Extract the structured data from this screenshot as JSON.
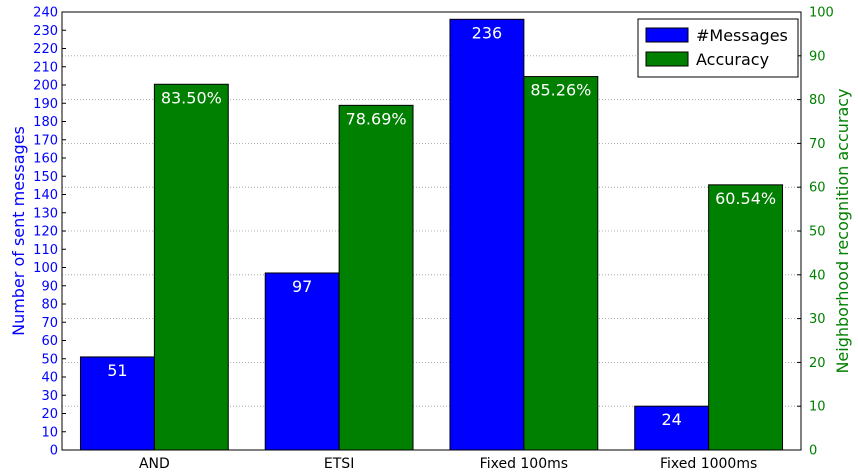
{
  "chart_data": {
    "type": "bar",
    "categories": [
      "AND",
      "ETSI",
      "Fixed 100ms",
      "Fixed 1000ms"
    ],
    "series": [
      {
        "name": "#Messages",
        "values": [
          51,
          97,
          236,
          24
        ],
        "labels": [
          "51",
          "97",
          "236",
          "24"
        ],
        "axis": "left",
        "color": "#0000ff"
      },
      {
        "name": "Accuracy",
        "values": [
          83.5,
          78.69,
          85.26,
          60.54
        ],
        "labels": [
          "83.50%",
          "78.69%",
          "85.26%",
          "60.54%"
        ],
        "axis": "right",
        "color": "#008000"
      }
    ],
    "ylabel": "Number of sent messages",
    "ylabel_right": "Neighborhood recognition accuracy",
    "ylim": [
      0,
      240
    ],
    "ylim_right": [
      0,
      100
    ],
    "yticks": [
      "0",
      "10",
      "20",
      "30",
      "40",
      "50",
      "60",
      "70",
      "80",
      "90",
      "100",
      "110",
      "120",
      "130",
      "140",
      "150",
      "160",
      "170",
      "180",
      "190",
      "200",
      "210",
      "220",
      "230",
      "240"
    ],
    "yticks_right": [
      "0",
      "10",
      "20",
      "30",
      "40",
      "50",
      "60",
      "70",
      "80",
      "90",
      "100"
    ],
    "grid": true,
    "legend_position": "top-right",
    "left_axis_color": "#0000ff",
    "right_axis_color": "#008000"
  }
}
